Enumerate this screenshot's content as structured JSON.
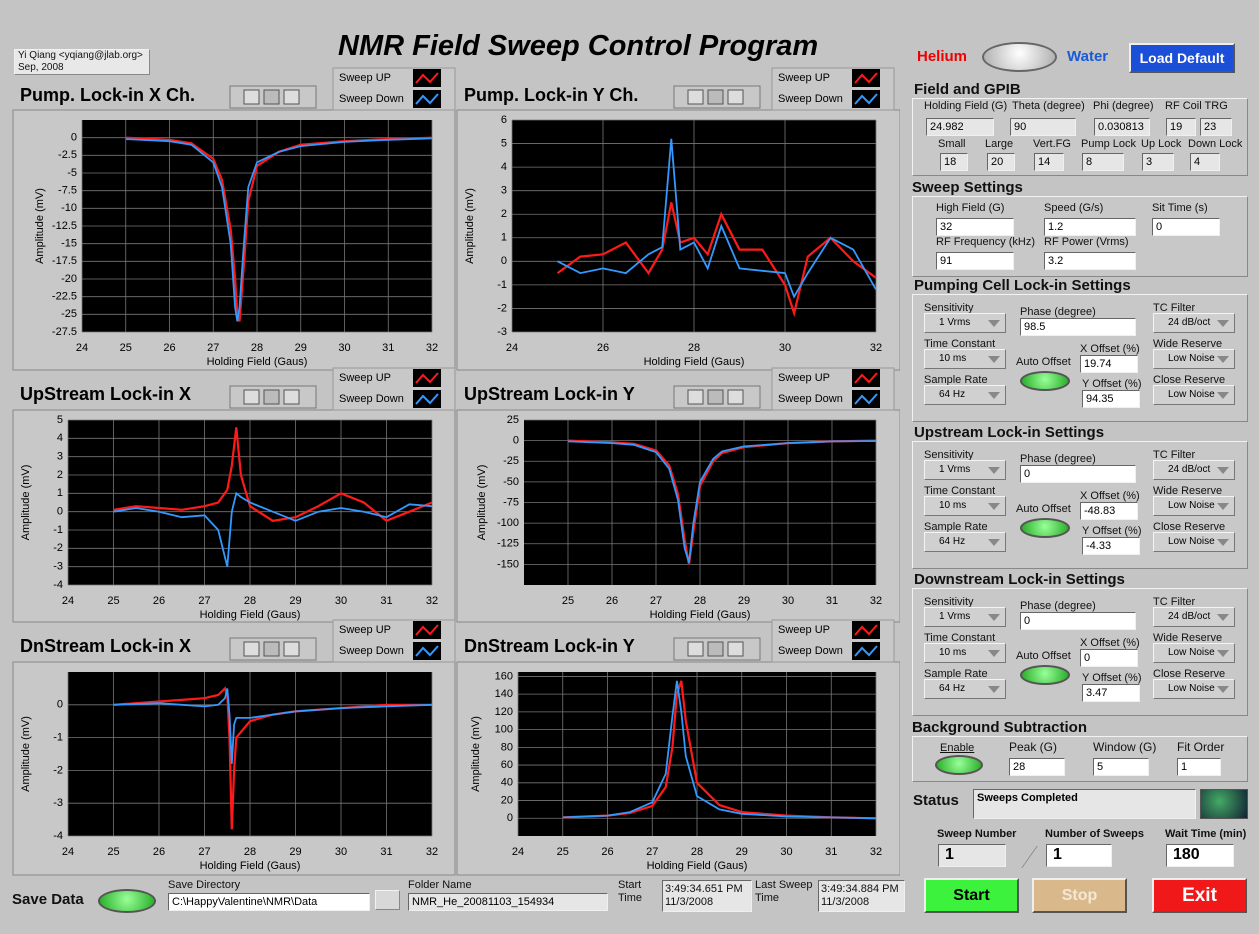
{
  "header": {
    "author": "Yi Qiang <yqiang@jlab.org>",
    "date": "Sep, 2008",
    "title": "NMR Field Sweep Control Program",
    "helium": "Helium",
    "water": "Water",
    "load_default": "Load Default"
  },
  "chart_data": [
    {
      "type": "line",
      "title": "Pump. Lock-in X Ch.",
      "xlabel": "Holding Field (Gaus)",
      "ylabel": "Amplitude (mV)",
      "x": [
        25,
        26,
        26.5,
        27,
        27.2,
        27.4,
        27.5,
        27.55,
        27.6,
        27.7,
        27.8,
        28,
        28.5,
        29,
        30,
        31,
        32
      ],
      "series": [
        {
          "name": "Sweep UP",
          "color": "#ff1a1a",
          "values": [
            0,
            -0.3,
            -0.8,
            -3,
            -6,
            -13,
            -20,
            -25,
            -26,
            -18,
            -9,
            -4,
            -2,
            -1,
            -0.5,
            -0.2,
            0
          ]
        },
        {
          "name": "Sweep Down",
          "color": "#3399ff",
          "values": [
            -0.2,
            -0.5,
            -1,
            -3.5,
            -7,
            -15,
            -24,
            -26,
            -24,
            -15,
            -7,
            -3.5,
            -2,
            -1.2,
            -0.6,
            -0.3,
            -0.1
          ]
        }
      ],
      "xlim": [
        24,
        32
      ],
      "xticks": [
        24,
        25,
        26,
        27,
        28,
        29,
        30,
        31,
        32
      ],
      "ylim": [
        -27.5,
        2.5
      ],
      "yticks": [
        0,
        -2.5,
        -5,
        -7.5,
        -10,
        -12.5,
        -15,
        -17.5,
        -20,
        -22.5,
        -25,
        -27.5
      ],
      "grid": true
    },
    {
      "type": "line",
      "title": "Pump. Lock-in Y Ch.",
      "xlabel": "Holding Field (Gaus)",
      "ylabel": "Amplitude (mV)",
      "x": [
        25,
        25.5,
        26,
        26.5,
        27,
        27.3,
        27.5,
        27.7,
        28,
        28.3,
        28.6,
        29,
        29.5,
        30,
        30.2,
        30.5,
        31,
        31.5,
        32
      ],
      "series": [
        {
          "name": "Sweep UP",
          "color": "#ff1a1a",
          "values": [
            -0.5,
            0.2,
            0.3,
            0.8,
            -0.5,
            0.5,
            2.5,
            0.8,
            1,
            0.3,
            2,
            0.5,
            0.5,
            -1,
            -2.2,
            0.2,
            1,
            0,
            -0.7
          ]
        },
        {
          "name": "Sweep Down",
          "color": "#3399ff",
          "values": [
            0,
            -0.5,
            -0.3,
            -0.5,
            0.3,
            0.6,
            5.2,
            0.5,
            0.8,
            -0.3,
            1.5,
            -0.3,
            -0.4,
            -0.5,
            -1.5,
            -0.5,
            1,
            0.5,
            -1.2
          ]
        }
      ],
      "xlim": [
        24,
        32
      ],
      "xticks": [
        24,
        26,
        28,
        30,
        32
      ],
      "ylim": [
        -3,
        6
      ],
      "yticks": [
        6,
        5,
        4,
        3,
        2,
        1,
        0,
        -1,
        -2,
        -3
      ],
      "grid": true
    },
    {
      "type": "line",
      "title": "UpStream Lock-in X",
      "xlabel": "Holding Field (Gaus)",
      "ylabel": "Amplitude (mV)",
      "x": [
        25,
        25.5,
        26,
        26.5,
        27,
        27.3,
        27.5,
        27.6,
        27.7,
        27.8,
        28,
        28.5,
        29,
        29.5,
        30,
        30.5,
        31,
        31.5,
        32
      ],
      "series": [
        {
          "name": "Sweep UP",
          "color": "#ff1a1a",
          "values": [
            0.1,
            0.3,
            0.2,
            0.1,
            0.3,
            0.5,
            1.2,
            2.5,
            4.6,
            2,
            0.3,
            -0.5,
            -0.3,
            0.3,
            1,
            0.5,
            -0.5,
            0,
            0.5
          ]
        },
        {
          "name": "Sweep Down",
          "color": "#3399ff",
          "values": [
            0,
            0.2,
            0,
            -0.3,
            -0.2,
            -1,
            -3,
            0,
            1,
            0.8,
            0.5,
            0,
            -0.5,
            0,
            0.2,
            0,
            -0.3,
            0.4,
            0.3
          ]
        }
      ],
      "xlim": [
        24,
        32
      ],
      "xticks": [
        24,
        25,
        26,
        27,
        28,
        29,
        30,
        31,
        32
      ],
      "ylim": [
        -4,
        5
      ],
      "yticks": [
        5,
        4,
        3,
        2,
        1,
        0,
        -1,
        -2,
        -3,
        -4
      ],
      "grid": true
    },
    {
      "type": "line",
      "title": "UpStream Lock-in Y",
      "xlabel": "Holding Field (Gaus)",
      "ylabel": "Amplitude (mV)",
      "x": [
        25,
        26,
        26.5,
        27,
        27.3,
        27.5,
        27.65,
        27.75,
        27.85,
        28,
        28.3,
        28.5,
        29,
        30,
        31,
        32
      ],
      "series": [
        {
          "name": "Sweep UP",
          "color": "#ff1a1a",
          "values": [
            0,
            -2,
            -4,
            -12,
            -30,
            -65,
            -120,
            -150,
            -110,
            -55,
            -25,
            -15,
            -8,
            -3,
            -1,
            0
          ]
        },
        {
          "name": "Sweep Down",
          "color": "#3399ff",
          "values": [
            -1,
            -3,
            -5,
            -14,
            -34,
            -72,
            -130,
            -148,
            -100,
            -50,
            -22,
            -13,
            -7,
            -3,
            -1,
            -0.5
          ]
        }
      ],
      "xlim": [
        24,
        32
      ],
      "xticks": [
        25,
        26,
        27,
        28,
        29,
        30,
        31,
        32
      ],
      "ylim": [
        -175,
        25
      ],
      "yticks": [
        25,
        0,
        -25,
        -50,
        -75,
        -100,
        -125,
        -150
      ],
      "grid": true
    },
    {
      "type": "line",
      "title": "DnStream Lock-in X",
      "xlabel": "Holding Field (Gaus)",
      "ylabel": "Amplitude (mV)",
      "x": [
        25,
        26,
        26.5,
        27,
        27.3,
        27.45,
        27.5,
        27.55,
        27.6,
        27.65,
        27.7,
        28,
        28.5,
        29,
        30,
        31,
        32
      ],
      "series": [
        {
          "name": "Sweep UP",
          "color": "#ff1a1a",
          "values": [
            0,
            0.1,
            0.15,
            0.2,
            0.3,
            0.5,
            0.3,
            -1,
            -3.8,
            -2,
            -1,
            -0.5,
            -0.3,
            -0.2,
            -0.1,
            0,
            0
          ]
        },
        {
          "name": "Sweep Down",
          "color": "#3399ff",
          "values": [
            0,
            0.05,
            0,
            -0.05,
            0,
            0.2,
            0.5,
            -0.3,
            -1.8,
            -0.6,
            -0.4,
            -0.4,
            -0.3,
            -0.2,
            -0.1,
            -0.05,
            0
          ]
        }
      ],
      "xlim": [
        24,
        32
      ],
      "xticks": [
        24,
        25,
        26,
        27,
        28,
        29,
        30,
        31,
        32
      ],
      "ylim": [
        -4,
        1
      ],
      "yticks": [
        0,
        -1,
        -2,
        -3,
        -4
      ],
      "grid": true
    },
    {
      "type": "line",
      "title": "DnStream Lock-in Y",
      "xlabel": "Holding Field (Gaus)",
      "ylabel": "Amplitude (mV)",
      "x": [
        25,
        26,
        26.5,
        27,
        27.3,
        27.45,
        27.55,
        27.65,
        27.75,
        28,
        28.5,
        29,
        30,
        31,
        32
      ],
      "series": [
        {
          "name": "Sweep UP",
          "color": "#ff1a1a",
          "values": [
            1,
            3,
            6,
            14,
            35,
            80,
            140,
            155,
            110,
            40,
            15,
            7,
            3,
            1,
            0
          ]
        },
        {
          "name": "Sweep Down",
          "color": "#3399ff",
          "values": [
            1,
            3,
            7,
            18,
            50,
            115,
            155,
            120,
            70,
            25,
            10,
            5,
            2,
            1,
            0
          ]
        }
      ],
      "xlim": [
        24,
        32
      ],
      "xticks": [
        24,
        25,
        26,
        27,
        28,
        29,
        30,
        31,
        32
      ],
      "ylim": [
        -20,
        165
      ],
      "yticks": [
        160,
        140,
        120,
        100,
        80,
        60,
        40,
        20,
        0
      ],
      "grid": true
    }
  ],
  "field_gpib": {
    "title": "Field and GPIB",
    "row1": [
      {
        "label": "Holding Field (G)",
        "value": 24.982
      },
      {
        "label": "Theta (degree)",
        "value": 90
      },
      {
        "label": "Phi (degree)",
        "value": 0.030813
      },
      {
        "label": "RF Coil TRG",
        "value": [
          19,
          23
        ]
      }
    ],
    "row2": [
      {
        "label": "Small",
        "value": 18
      },
      {
        "label": "Large",
        "value": 20
      },
      {
        "label": "Vert.FG",
        "value": 14
      },
      {
        "label": "Pump Lock",
        "value": 8
      },
      {
        "label": "Up Lock",
        "value": 3
      },
      {
        "label": "Down Lock",
        "value": 4
      }
    ]
  },
  "sweep": {
    "title": "Sweep Settings",
    "fields": [
      {
        "label": "High Field (G)",
        "value": 32
      },
      {
        "label": "Speed (G/s)",
        "value": 1.2
      },
      {
        "label": "Sit Time (s)",
        "value": 0
      },
      {
        "label": "RF Frequency (kHz)",
        "value": 91
      },
      {
        "label": "RF Power (Vrms)",
        "value": 3.2
      }
    ]
  },
  "lockins": [
    {
      "title": "Pumping Cell Lock-in Settings",
      "sensitivity": {
        "label": "Sensitivity",
        "value": "1 Vrms"
      },
      "phase": {
        "label": "Phase (degree)",
        "value": 98.5
      },
      "tc_filter": {
        "label": "TC Filter",
        "value": "24 dB/oct"
      },
      "time_constant": {
        "label": "Time Constant",
        "value": "10 ms"
      },
      "auto_offset": "Auto Offset",
      "x_offset": {
        "label": "X Offset (%)",
        "value": 19.74
      },
      "wide_reserve": {
        "label": "Wide Reserve",
        "value": "Low Noise"
      },
      "sample_rate": {
        "label": "Sample Rate",
        "value": "64 Hz"
      },
      "y_offset": {
        "label": "Y Offset (%)",
        "value": 94.35
      },
      "close_reserve": {
        "label": "Close Reserve",
        "value": "Low Noise"
      }
    },
    {
      "title": "Upstream Lock-in Settings",
      "sensitivity": {
        "label": "Sensitivity",
        "value": "1 Vrms"
      },
      "phase": {
        "label": "Phase (degree)",
        "value": 0
      },
      "tc_filter": {
        "label": "TC Filter",
        "value": "24 dB/oct"
      },
      "time_constant": {
        "label": "Time Constant",
        "value": "10 ms"
      },
      "auto_offset": "Auto Offset",
      "x_offset": {
        "label": "X Offset (%)",
        "value": -48.83
      },
      "wide_reserve": {
        "label": "Wide Reserve",
        "value": "Low Noise"
      },
      "sample_rate": {
        "label": "Sample Rate",
        "value": "64 Hz"
      },
      "y_offset": {
        "label": "Y Offset (%)",
        "value": -4.33
      },
      "close_reserve": {
        "label": "Close Reserve",
        "value": "Low Noise"
      }
    },
    {
      "title": "Downstream Lock-in Settings",
      "sensitivity": {
        "label": "Sensitivity",
        "value": "1 Vrms"
      },
      "phase": {
        "label": "Phase (degree)",
        "value": 0
      },
      "tc_filter": {
        "label": "TC Filter",
        "value": "24 dB/oct"
      },
      "time_constant": {
        "label": "Time Constant",
        "value": "10 ms"
      },
      "auto_offset": "Auto Offset",
      "x_offset": {
        "label": "X Offset (%)",
        "value": 0
      },
      "wide_reserve": {
        "label": "Wide Reserve",
        "value": "Low Noise"
      },
      "sample_rate": {
        "label": "Sample Rate",
        "value": "64 Hz"
      },
      "y_offset": {
        "label": "Y Offset (%)",
        "value": 3.47
      },
      "close_reserve": {
        "label": "Close Reserve",
        "value": "Low Noise"
      }
    }
  ],
  "background": {
    "title": "Background Subtraction",
    "enable": "Enable",
    "peak": {
      "label": "Peak (G)",
      "value": 28
    },
    "window": {
      "label": "Window (G)",
      "value": 5
    },
    "fit_order": {
      "label": "Fit Order",
      "value": 1
    }
  },
  "status": {
    "label": "Status",
    "value": "Sweeps Completed"
  },
  "counters": {
    "sweep_number": {
      "label": "Sweep Number",
      "value": 1
    },
    "number_of_sweeps": {
      "label": "Number of Sweeps",
      "value": 1
    },
    "wait_time": {
      "label": "Wait Time (min)",
      "value": 180
    }
  },
  "buttons": {
    "start": "Start",
    "stop": "Stop",
    "exit": "Exit"
  },
  "save": {
    "label": "Save Data",
    "directory_label": "Save Directory",
    "directory": "C:\\HappyValentine\\NMR\\Data",
    "folder_label": "Folder Name",
    "folder": "NMR_He_20081103_154934",
    "start_label": "Start Time",
    "start_time": "3:49:34.651 PM",
    "start_date": "11/3/2008",
    "last_label": "Last Sweep Time",
    "last_time": "3:49:34.884 PM",
    "last_date": "11/3/2008"
  }
}
